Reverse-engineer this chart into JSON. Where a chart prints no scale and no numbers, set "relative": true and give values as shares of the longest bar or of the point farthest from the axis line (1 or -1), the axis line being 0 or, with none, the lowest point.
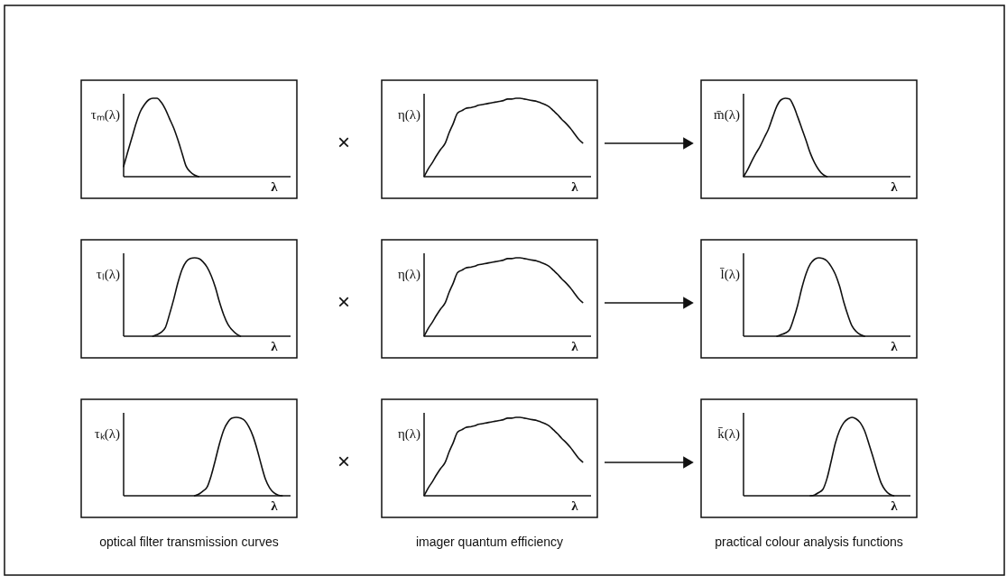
{
  "chart_data": [
    {
      "type": "line",
      "relative": true,
      "color": "#111111",
      "ylabel": "τₘ(λ)",
      "xlabel": "λ",
      "annotations": [
        "×"
      ],
      "categories": [
        null,
        null,
        null,
        null,
        null,
        null,
        null,
        null,
        null,
        null,
        null,
        null,
        null,
        null,
        null,
        null,
        null,
        null,
        null,
        null,
        null,
        null,
        null,
        null,
        null,
        null,
        null,
        null,
        null,
        null,
        null,
        null,
        null,
        null,
        null,
        null,
        null,
        null,
        null,
        null,
        null
      ],
      "values": [
        0.13,
        0.32,
        0.5,
        0.68,
        0.83,
        0.92,
        0.98,
        1.0,
        1.0,
        0.95,
        0.86,
        0.74,
        0.62,
        0.47,
        0.3,
        0.13,
        0.06,
        0.02,
        0,
        null,
        null,
        null,
        null,
        null,
        null,
        null,
        null,
        null,
        null,
        null,
        null,
        null,
        null,
        null,
        null,
        null,
        null,
        null,
        null,
        null,
        null
      ]
    },
    {
      "type": "line",
      "relative": true,
      "color": "#111111",
      "ylabel": "η(λ)",
      "xlabel": "λ",
      "categories": [
        null,
        null,
        null,
        null,
        null,
        null,
        null,
        null,
        null,
        null,
        null,
        null,
        null,
        null,
        null,
        null,
        null,
        null,
        null,
        null,
        null,
        null,
        null,
        null,
        null,
        null,
        null,
        null,
        null,
        null,
        null,
        null,
        null,
        null,
        null,
        null,
        null,
        null,
        null,
        null,
        null
      ],
      "values": [
        0,
        0.1,
        0.18,
        0.27,
        0.35,
        0.42,
        0.56,
        0.68,
        0.81,
        0.84,
        0.87,
        0.88,
        0.89,
        0.91,
        0.92,
        0.93,
        0.94,
        0.95,
        0.96,
        0.97,
        0.99,
        0.99,
        1.0,
        1.0,
        0.99,
        0.98,
        0.97,
        0.96,
        0.94,
        0.92,
        0.89,
        0.84,
        0.79,
        0.73,
        0.68,
        0.62,
        0.55,
        0.48,
        0.43,
        null,
        null
      ]
    },
    {
      "type": "line",
      "relative": true,
      "color": "#111111",
      "ylabel": "m̄(λ)",
      "xlabel": "λ",
      "categories": [
        null,
        null,
        null,
        null,
        null,
        null,
        null,
        null,
        null,
        null,
        null,
        null,
        null,
        null,
        null,
        null,
        null,
        null,
        null,
        null,
        null,
        null,
        null,
        null,
        null,
        null,
        null,
        null,
        null,
        null,
        null,
        null,
        null,
        null,
        null,
        null,
        null,
        null,
        null,
        null,
        null
      ],
      "values": [
        0,
        0.09,
        0.2,
        0.3,
        0.39,
        0.5,
        0.61,
        0.76,
        0.9,
        0.98,
        1.0,
        0.99,
        0.9,
        0.76,
        0.61,
        0.46,
        0.3,
        0.18,
        0.09,
        0.03,
        0,
        null,
        null,
        null,
        null,
        null,
        null,
        null,
        null,
        null,
        null,
        null,
        null,
        null,
        null,
        null,
        null,
        null,
        null,
        null,
        null
      ]
    },
    {
      "type": "line",
      "relative": true,
      "color": "#111111",
      "ylabel": "τₗ(λ)",
      "xlabel": "λ",
      "annotations": [
        "×"
      ],
      "categories": [
        null,
        null,
        null,
        null,
        null,
        null,
        null,
        null,
        null,
        null,
        null,
        null,
        null,
        null,
        null,
        null,
        null,
        null,
        null,
        null,
        null,
        null,
        null,
        null,
        null,
        null,
        null,
        null,
        null,
        null,
        null,
        null,
        null,
        null,
        null,
        null,
        null,
        null,
        null,
        null,
        null
      ],
      "values": [
        null,
        null,
        null,
        null,
        null,
        null,
        null,
        0,
        0.02,
        0.05,
        0.11,
        0.28,
        0.47,
        0.68,
        0.85,
        0.95,
        0.99,
        1.0,
        0.99,
        0.95,
        0.88,
        0.77,
        0.62,
        0.43,
        0.27,
        0.15,
        0.08,
        0.03,
        0,
        null,
        null,
        null,
        null,
        null,
        null,
        null,
        null,
        null,
        null,
        null,
        null
      ]
    },
    {
      "type": "line",
      "relative": true,
      "color": "#111111",
      "ylabel": "η(λ)",
      "xlabel": "λ",
      "categories": [
        null,
        null,
        null,
        null,
        null,
        null,
        null,
        null,
        null,
        null,
        null,
        null,
        null,
        null,
        null,
        null,
        null,
        null,
        null,
        null,
        null,
        null,
        null,
        null,
        null,
        null,
        null,
        null,
        null,
        null,
        null,
        null,
        null,
        null,
        null,
        null,
        null,
        null,
        null,
        null,
        null
      ],
      "values": [
        0,
        0.1,
        0.18,
        0.27,
        0.35,
        0.42,
        0.56,
        0.68,
        0.81,
        0.84,
        0.87,
        0.88,
        0.89,
        0.91,
        0.92,
        0.93,
        0.94,
        0.95,
        0.96,
        0.97,
        0.99,
        0.99,
        1.0,
        1.0,
        0.99,
        0.98,
        0.97,
        0.96,
        0.94,
        0.92,
        0.89,
        0.84,
        0.79,
        0.73,
        0.68,
        0.62,
        0.55,
        0.48,
        0.43,
        null,
        null
      ]
    },
    {
      "type": "line",
      "relative": true,
      "color": "#111111",
      "ylabel": "l̄(λ)",
      "xlabel": "λ",
      "categories": [
        null,
        null,
        null,
        null,
        null,
        null,
        null,
        null,
        null,
        null,
        null,
        null,
        null,
        null,
        null,
        null,
        null,
        null,
        null,
        null,
        null,
        null,
        null,
        null,
        null,
        null,
        null,
        null,
        null,
        null,
        null,
        null,
        null,
        null,
        null,
        null,
        null,
        null,
        null,
        null,
        null
      ],
      "values": [
        null,
        null,
        null,
        null,
        null,
        null,
        null,
        null,
        0,
        0.02,
        0.04,
        0.08,
        0.22,
        0.4,
        0.62,
        0.8,
        0.92,
        0.98,
        1.0,
        0.99,
        0.96,
        0.89,
        0.79,
        0.64,
        0.44,
        0.27,
        0.13,
        0.06,
        0.02,
        0,
        null,
        null,
        null,
        null,
        null,
        null,
        null,
        null,
        null,
        null,
        null
      ]
    },
    {
      "type": "line",
      "relative": true,
      "color": "#111111",
      "ylabel": "τₖ(λ)",
      "xlabel": "λ",
      "annotations": [
        "optical filter transmission curves",
        "×"
      ],
      "categories": [
        null,
        null,
        null,
        null,
        null,
        null,
        null,
        null,
        null,
        null,
        null,
        null,
        null,
        null,
        null,
        null,
        null,
        null,
        null,
        null,
        null,
        null,
        null,
        null,
        null,
        null,
        null,
        null,
        null,
        null,
        null,
        null,
        null,
        null,
        null,
        null,
        null,
        null,
        null,
        null,
        null
      ],
      "values": [
        null,
        null,
        null,
        null,
        null,
        null,
        null,
        null,
        null,
        null,
        null,
        null,
        null,
        null,
        null,
        null,
        null,
        0,
        0.02,
        0.06,
        0.11,
        0.26,
        0.46,
        0.67,
        0.84,
        0.94,
        0.99,
        1.0,
        0.99,
        0.96,
        0.88,
        0.76,
        0.59,
        0.39,
        0.21,
        0.1,
        0.04,
        0.01,
        0,
        null,
        null
      ]
    },
    {
      "type": "line",
      "relative": true,
      "color": "#111111",
      "ylabel": "η(λ)",
      "xlabel": "λ",
      "annotations": [
        "imager quantum efficiency"
      ],
      "categories": [
        null,
        null,
        null,
        null,
        null,
        null,
        null,
        null,
        null,
        null,
        null,
        null,
        null,
        null,
        null,
        null,
        null,
        null,
        null,
        null,
        null,
        null,
        null,
        null,
        null,
        null,
        null,
        null,
        null,
        null,
        null,
        null,
        null,
        null,
        null,
        null,
        null,
        null,
        null,
        null,
        null
      ],
      "values": [
        0,
        0.1,
        0.18,
        0.27,
        0.35,
        0.42,
        0.56,
        0.68,
        0.81,
        0.84,
        0.87,
        0.88,
        0.89,
        0.91,
        0.92,
        0.93,
        0.94,
        0.95,
        0.96,
        0.97,
        0.99,
        0.99,
        1.0,
        1.0,
        0.99,
        0.98,
        0.97,
        0.96,
        0.94,
        0.92,
        0.89,
        0.84,
        0.79,
        0.73,
        0.68,
        0.62,
        0.55,
        0.48,
        0.43,
        null,
        null
      ]
    },
    {
      "type": "line",
      "relative": true,
      "color": "#111111",
      "ylabel": "k̄(λ)",
      "xlabel": "λ",
      "annotations": [
        "practical colour analysis functions"
      ],
      "categories": [
        null,
        null,
        null,
        null,
        null,
        null,
        null,
        null,
        null,
        null,
        null,
        null,
        null,
        null,
        null,
        null,
        null,
        null,
        null,
        null,
        null,
        null,
        null,
        null,
        null,
        null,
        null,
        null,
        null,
        null,
        null,
        null,
        null,
        null,
        null,
        null,
        null,
        null,
        null,
        null,
        null
      ],
      "values": [
        null,
        null,
        null,
        null,
        null,
        null,
        null,
        null,
        null,
        null,
        null,
        null,
        null,
        null,
        null,
        null,
        0,
        0.01,
        0.04,
        0.08,
        0.22,
        0.44,
        0.67,
        0.83,
        0.93,
        0.98,
        1.0,
        0.98,
        0.93,
        0.83,
        0.67,
        0.5,
        0.32,
        0.16,
        0.07,
        0.02,
        0,
        null,
        null,
        null,
        null
      ]
    }
  ]
}
